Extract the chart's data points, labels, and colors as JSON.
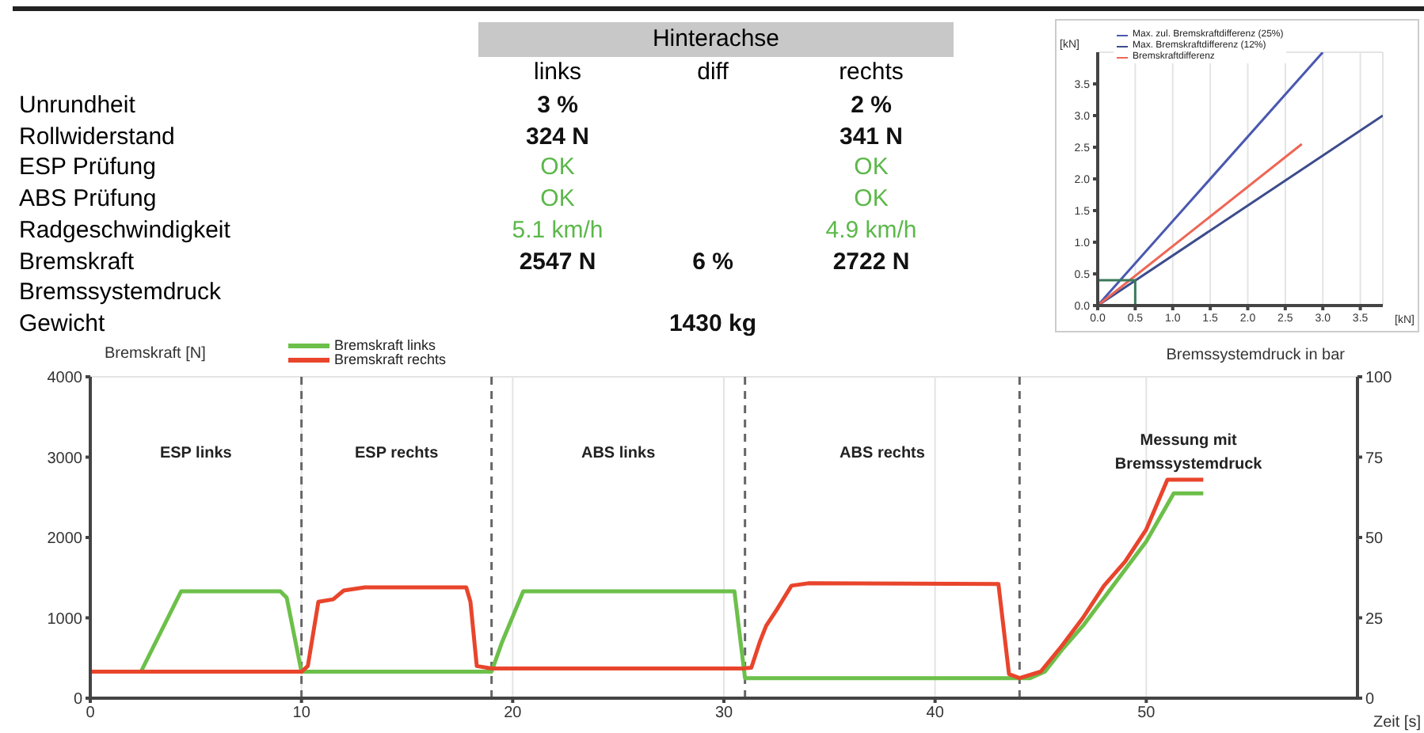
{
  "chart_data": [
    {
      "type": "other",
      "title": "Hinterachse",
      "categories": [
        "links",
        "diff",
        "rechts"
      ],
      "y_categories": [
        "Unrundheit",
        "Rollwiderstand",
        "ESP Prüfung",
        "ABS Prüfung",
        "Radgeschwindigkeit",
        "Bremskraft",
        "Bremssystemdruck",
        "Gewicht"
      ],
      "cell_labels": [
        [
          "3 %",
          null,
          "2 %"
        ],
        [
          "324 N",
          null,
          "341 N"
        ],
        [
          "OK",
          null,
          "OK"
        ],
        [
          "OK",
          null,
          "OK"
        ],
        [
          "5.1 km/h",
          null,
          "4.9 km/h"
        ],
        [
          "2547 N",
          "6 %",
          "2722 N"
        ],
        [
          null,
          null,
          null
        ],
        [
          null,
          "1430 kg",
          null
        ]
      ],
      "colors": [
        "#111111",
        "#111111",
        "#5cb84a",
        "#5cb84a",
        "#5cb84a",
        "#111111",
        "#111111",
        "#111111"
      ]
    },
    {
      "type": "line",
      "xlabel": "[kN]",
      "ylabel": "[kN]",
      "xlim": [
        0,
        3.8
      ],
      "ylim": [
        0,
        4
      ],
      "xticks": [
        {
          "value": 0,
          "label": "0.0"
        },
        0.5,
        {
          "value": 1,
          "label": "1.0"
        },
        1.5,
        {
          "value": 2,
          "label": "2.0"
        },
        2.5,
        {
          "value": 3,
          "label": "3.0"
        },
        3.5
      ],
      "yticks": [
        {
          "value": 0,
          "label": "0.0"
        },
        0.5,
        {
          "value": 1,
          "label": "1.0"
        },
        1.5,
        {
          "value": 2,
          "label": "2.0"
        },
        2.5,
        {
          "value": 3,
          "label": "3.0"
        },
        3.5
      ],
      "grid": true,
      "legend": "top left",
      "marker": "none",
      "line_style": "solid",
      "series": [
        {
          "name": "Max. zul. Bremskraftdifferenz (25%)",
          "color": "#4a58b0",
          "x": [
            0,
            3.0
          ],
          "values": [
            0,
            4.0
          ]
        },
        {
          "name": "Max. Bremskraftdifferenz (12%)",
          "color": "#3c4c8c",
          "x": [
            0,
            3.8
          ],
          "values": [
            0,
            3.0
          ]
        },
        {
          "name": "Bremskraftdifferenz",
          "color": "#ee6655",
          "x": [
            0,
            2.72
          ],
          "values": [
            0,
            2.55
          ]
        },
        {
          "color": "#3a7a5a",
          "x": [
            0,
            0.5,
            0.5
          ],
          "values": [
            0.4,
            0.4,
            0
          ]
        }
      ]
    },
    {
      "type": "line",
      "ylabel": "Bremskraft [N]",
      "y2label": "Bremssystemdruck in bar",
      "xlabel": "Zeit [s]",
      "xlim": [
        0,
        60
      ],
      "xticks": [
        0,
        10,
        20,
        30,
        40,
        50
      ],
      "ylim": [
        0,
        4000
      ],
      "yticks": [
        0,
        1000,
        2000,
        3000,
        4000
      ],
      "y2lim": [
        0,
        100
      ],
      "y2ticks": [
        0,
        25,
        50,
        75,
        100
      ],
      "grid": true,
      "legend": "top",
      "marker": "none",
      "line_style": "solid",
      "series": [
        {
          "name": "Bremskraft links",
          "color": "#6cc04a",
          "x": [
            2.4,
            4.3,
            9,
            9.3,
            10,
            19,
            19.5,
            20.5,
            30.5,
            31,
            44,
            44.5,
            45.2,
            46,
            47,
            48,
            49,
            50,
            51.3,
            52.7
          ],
          "values": [
            330,
            1330,
            1330,
            1250,
            330,
            330,
            700,
            1330,
            1330,
            250,
            250,
            250,
            330,
            600,
            900,
            1250,
            1600,
            1950,
            2550,
            2550
          ]
        },
        {
          "name": "Bremskraft rechts",
          "color": "#e8452c",
          "x": [
            0,
            10,
            10.3,
            10.8,
            11.5,
            12,
            13,
            17.8,
            18,
            18.3,
            19,
            30.9,
            31.3,
            31.7,
            32,
            32.5,
            33.2,
            34,
            43,
            43.5,
            44,
            45,
            46,
            47,
            48,
            49,
            50,
            51,
            52.7
          ],
          "values": [
            330,
            330,
            400,
            1200,
            1230,
            1340,
            1380,
            1380,
            1200,
            400,
            370,
            370,
            380,
            700,
            900,
            1100,
            1400,
            1430,
            1420,
            300,
            250,
            330,
            650,
            1000,
            1400,
            1700,
            2100,
            2720,
            2720
          ]
        }
      ],
      "ref_lines": [
        {
          "axis": "x",
          "value": 10,
          "line_style": "dashed",
          "color": "#666666"
        },
        {
          "axis": "x",
          "value": 19,
          "line_style": "dashed",
          "color": "#666666"
        },
        {
          "axis": "x",
          "value": 31,
          "line_style": "dashed",
          "color": "#666666"
        },
        {
          "axis": "x",
          "value": 44,
          "line_style": "dashed",
          "color": "#666666"
        }
      ],
      "annotations": [
        "ESP links",
        "ESP rechts",
        "ABS links",
        "ABS rechts",
        "Messung mit Bremssystemdruck"
      ]
    }
  ]
}
